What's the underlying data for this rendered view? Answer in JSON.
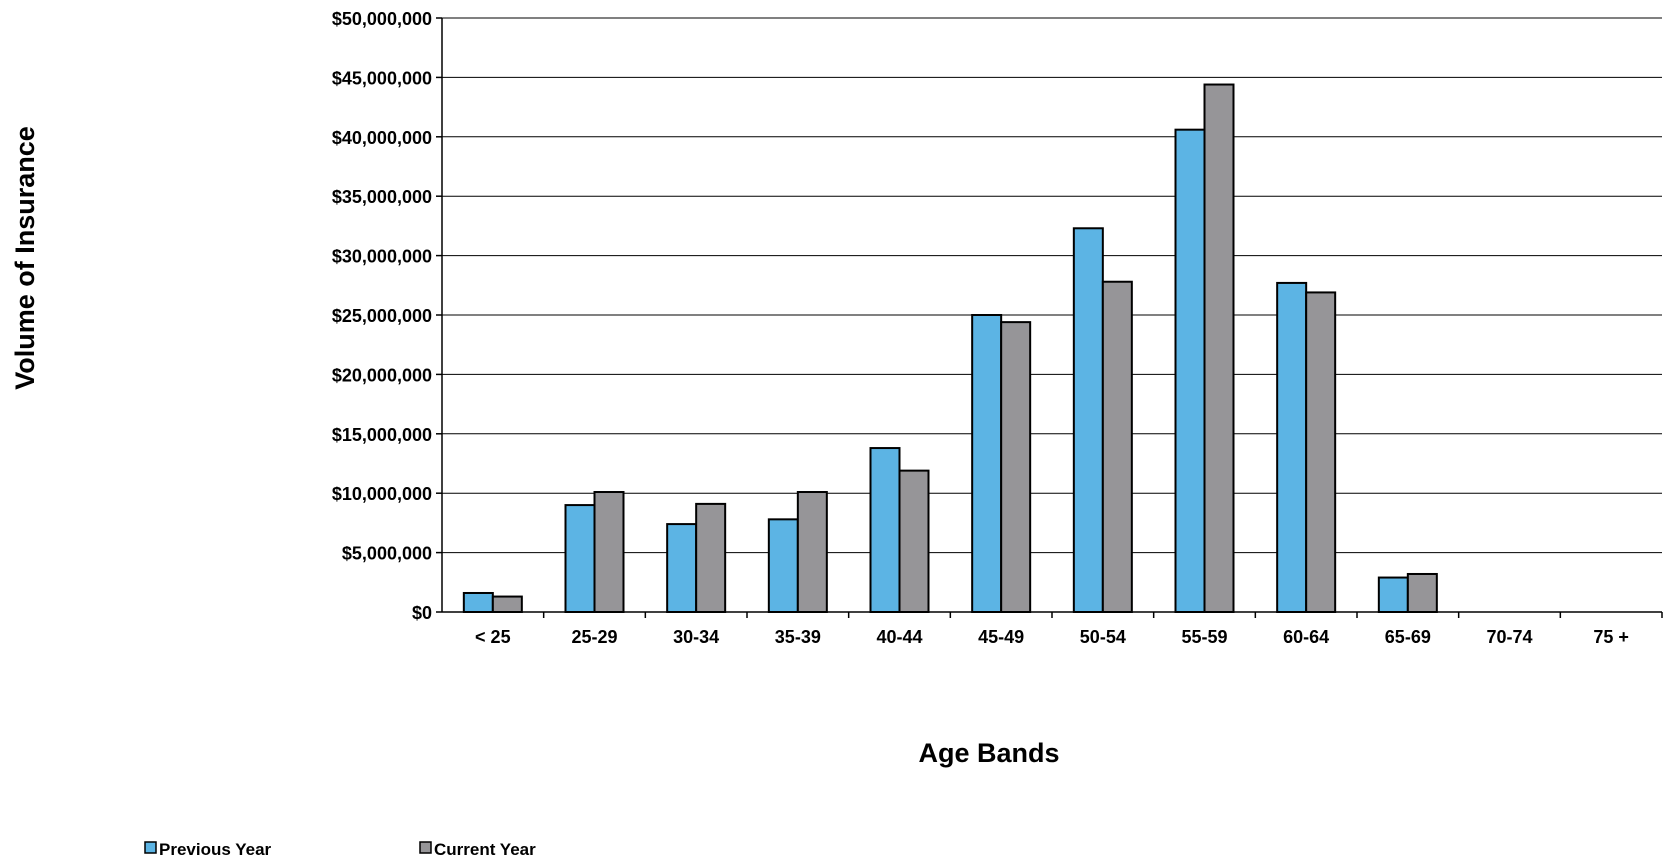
{
  "chart_data": {
    "type": "bar",
    "title": "",
    "xlabel": "Age Bands",
    "ylabel": "Volume of Insurance",
    "categories": [
      "< 25",
      "25-29",
      "30-34",
      "35-39",
      "40-44",
      "45-49",
      "50-54",
      "55-59",
      "60-64",
      "65-69",
      "70-74",
      "75 +"
    ],
    "series": [
      {
        "name": "Previous Year",
        "color": "#5cb4e4",
        "values": [
          1600000,
          9000000,
          7400000,
          7800000,
          13800000,
          25000000,
          32300000,
          40600000,
          27700000,
          2900000,
          0,
          0
        ]
      },
      {
        "name": "Current Year",
        "color": "#969598",
        "values": [
          1300000,
          10100000,
          9100000,
          10100000,
          11900000,
          24400000,
          27800000,
          44400000,
          26900000,
          3200000,
          0,
          0
        ]
      }
    ],
    "ylim": [
      0,
      50000000
    ],
    "yticks": [
      "$0",
      "$5,000,000",
      "$10,000,000",
      "$15,000,000",
      "$20,000,000",
      "$25,000,000",
      "$30,000,000",
      "$35,000,000",
      "$40,000,000",
      "$45,000,000",
      "$50,000,000"
    ],
    "grid": true,
    "legend_position": "bottom-left"
  }
}
